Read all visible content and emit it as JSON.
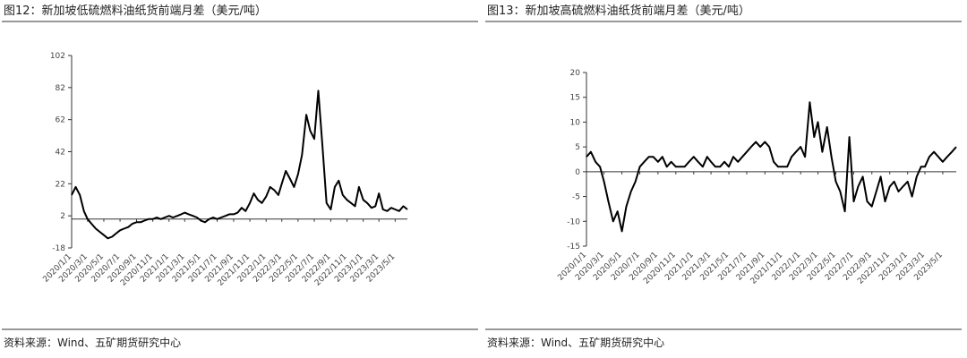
{
  "chart_data": [
    {
      "type": "line",
      "title": "图12：新加坡低硫燃料油纸货前端月差（美元/吨）",
      "source": "资料来源：Wind、五矿期货研究中心",
      "x": [
        "2020/1/1",
        "2020/1/16",
        "2020/2/1",
        "2020/2/16",
        "2020/3/1",
        "2020/3/16",
        "2020/4/1",
        "2020/4/16",
        "2020/5/1",
        "2020/5/16",
        "2020/6/1",
        "2020/6/16",
        "2020/7/1",
        "2020/7/16",
        "2020/8/1",
        "2020/8/16",
        "2020/9/1",
        "2020/9/16",
        "2020/10/1",
        "2020/10/16",
        "2020/11/1",
        "2020/11/16",
        "2020/12/1",
        "2020/12/16",
        "2021/1/1",
        "2021/1/16",
        "2021/2/1",
        "2021/2/16",
        "2021/3/1",
        "2021/3/16",
        "2021/4/1",
        "2021/4/16",
        "2021/5/1",
        "2021/5/16",
        "2021/6/1",
        "2021/6/16",
        "2021/7/1",
        "2021/7/16",
        "2021/8/1",
        "2021/8/16",
        "2021/9/1",
        "2021/9/16",
        "2021/10/1",
        "2021/10/16",
        "2021/11/1",
        "2021/11/16",
        "2021/12/1",
        "2021/12/16",
        "2022/1/1",
        "2022/1/16",
        "2022/2/1",
        "2022/2/16",
        "2022/3/1",
        "2022/3/16",
        "2022/4/1",
        "2022/4/16",
        "2022/5/1",
        "2022/5/16",
        "2022/6/1",
        "2022/6/16",
        "2022/7/1",
        "2022/7/16",
        "2022/8/1",
        "2022/8/16",
        "2022/9/1",
        "2022/9/16",
        "2022/10/1",
        "2022/10/16",
        "2022/11/1",
        "2022/11/16",
        "2022/12/1",
        "2022/12/16",
        "2023/1/1",
        "2023/1/16",
        "2023/2/1",
        "2023/2/16",
        "2023/3/1",
        "2023/3/16",
        "2023/4/1",
        "2023/4/16",
        "2023/5/1",
        "2023/5/16",
        "2023/6/1",
        "2023/6/16"
      ],
      "values": [
        15,
        20,
        15,
        5,
        0,
        -3,
        -6,
        -8,
        -10,
        -12,
        -11,
        -9,
        -7,
        -6,
        -5,
        -3,
        -2,
        -2,
        -1,
        0,
        0,
        1,
        0,
        1,
        2,
        1,
        2,
        3,
        4,
        3,
        2,
        1,
        -1,
        -2,
        0,
        1,
        0,
        1,
        2,
        3,
        3,
        4,
        7,
        5,
        10,
        16,
        12,
        10,
        14,
        20,
        18,
        15,
        22,
        30,
        25,
        20,
        28,
        40,
        65,
        55,
        50,
        80,
        45,
        10,
        6,
        20,
        24,
        15,
        12,
        10,
        8,
        20,
        12,
        10,
        7,
        8,
        16,
        6,
        5,
        7,
        6,
        5,
        8,
        6
      ],
      "color": "#000000",
      "xlim": [
        "2020/1/1",
        "2023/6/16"
      ],
      "xticks": [
        "2020/1/1",
        "2020/3/1",
        "2020/5/1",
        "2020/7/1",
        "2020/9/1",
        "2020/11/1",
        "2021/1/1",
        "2021/3/1",
        "2021/5/1",
        "2021/7/1",
        "2021/9/1",
        "2021/11/1",
        "2022/1/1",
        "2022/3/1",
        "2022/5/1",
        "2022/7/1",
        "2022/9/1",
        "2022/11/1",
        "2023/1/1",
        "2023/3/1",
        "2023/5/1"
      ],
      "ylim": [
        -18,
        102
      ],
      "yticks": [
        -18,
        2,
        22,
        42,
        62,
        82,
        102
      ]
    },
    {
      "type": "line",
      "title": "图13：新加坡高硫燃料油纸货前端月差（美元/吨）",
      "source": "资料来源：Wind、五矿期货研究中心",
      "x": [
        "2020/1/1",
        "2020/1/16",
        "2020/2/1",
        "2020/2/16",
        "2020/3/1",
        "2020/3/16",
        "2020/4/1",
        "2020/4/16",
        "2020/5/1",
        "2020/5/16",
        "2020/6/1",
        "2020/6/16",
        "2020/7/1",
        "2020/7/16",
        "2020/8/1",
        "2020/8/16",
        "2020/9/1",
        "2020/9/16",
        "2020/10/1",
        "2020/10/16",
        "2020/11/1",
        "2020/11/16",
        "2020/12/1",
        "2020/12/16",
        "2021/1/1",
        "2021/1/16",
        "2021/2/1",
        "2021/2/16",
        "2021/3/1",
        "2021/3/16",
        "2021/4/1",
        "2021/4/16",
        "2021/5/1",
        "2021/5/16",
        "2021/6/1",
        "2021/6/16",
        "2021/7/1",
        "2021/7/16",
        "2021/8/1",
        "2021/8/16",
        "2021/9/1",
        "2021/9/16",
        "2021/10/1",
        "2021/10/16",
        "2021/11/1",
        "2021/11/16",
        "2021/12/1",
        "2021/12/16",
        "2022/1/1",
        "2022/1/16",
        "2022/2/1",
        "2022/2/16",
        "2022/3/1",
        "2022/3/16",
        "2022/4/1",
        "2022/4/16",
        "2022/5/1",
        "2022/5/16",
        "2022/6/1",
        "2022/6/16",
        "2022/7/1",
        "2022/7/16",
        "2022/8/1",
        "2022/8/16",
        "2022/9/1",
        "2022/9/16",
        "2022/10/1",
        "2022/10/16",
        "2022/11/1",
        "2022/11/16",
        "2022/12/1",
        "2022/12/16",
        "2023/1/1",
        "2023/1/16",
        "2023/2/1",
        "2023/2/16",
        "2023/3/1",
        "2023/3/16",
        "2023/4/1",
        "2023/4/16",
        "2023/5/1",
        "2023/5/16",
        "2023/6/1",
        "2023/6/16"
      ],
      "values": [
        3,
        4,
        2,
        1,
        -2,
        -6,
        -10,
        -8,
        -12,
        -7,
        -4,
        -2,
        1,
        2,
        3,
        3,
        2,
        3,
        1,
        2,
        1,
        1,
        1,
        2,
        3,
        2,
        1,
        3,
        2,
        1,
        1,
        2,
        1,
        3,
        2,
        3,
        4,
        5,
        6,
        5,
        6,
        5,
        2,
        1,
        1,
        1,
        3,
        4,
        5,
        3,
        14,
        7,
        10,
        4,
        9,
        3,
        -2,
        -4,
        -8,
        7,
        -6,
        -3,
        -1,
        -6,
        -7,
        -4,
        -1,
        -6,
        -3,
        -2,
        -4,
        -3,
        -2,
        -5,
        -1,
        1,
        1,
        3,
        4,
        3,
        2,
        3,
        4,
        5
      ],
      "color": "#000000",
      "xlim": [
        "2020/1/1",
        "2023/6/16"
      ],
      "xticks": [
        "2020/1/1",
        "2020/3/1",
        "2020/5/1",
        "2020/7/1",
        "2020/9/1",
        "2020/11/1",
        "2021/1/1",
        "2021/3/1",
        "2021/5/1",
        "2021/7/1",
        "2021/9/1",
        "2021/11/1",
        "2022/1/1",
        "2022/3/1",
        "2022/5/1",
        "2022/7/1",
        "2022/9/1",
        "2022/11/1",
        "2023/1/1",
        "2023/3/1",
        "2023/5/1"
      ],
      "ylim": [
        -15,
        20
      ],
      "yticks": [
        -15,
        -10,
        -5,
        0,
        5,
        10,
        15,
        20
      ]
    }
  ]
}
